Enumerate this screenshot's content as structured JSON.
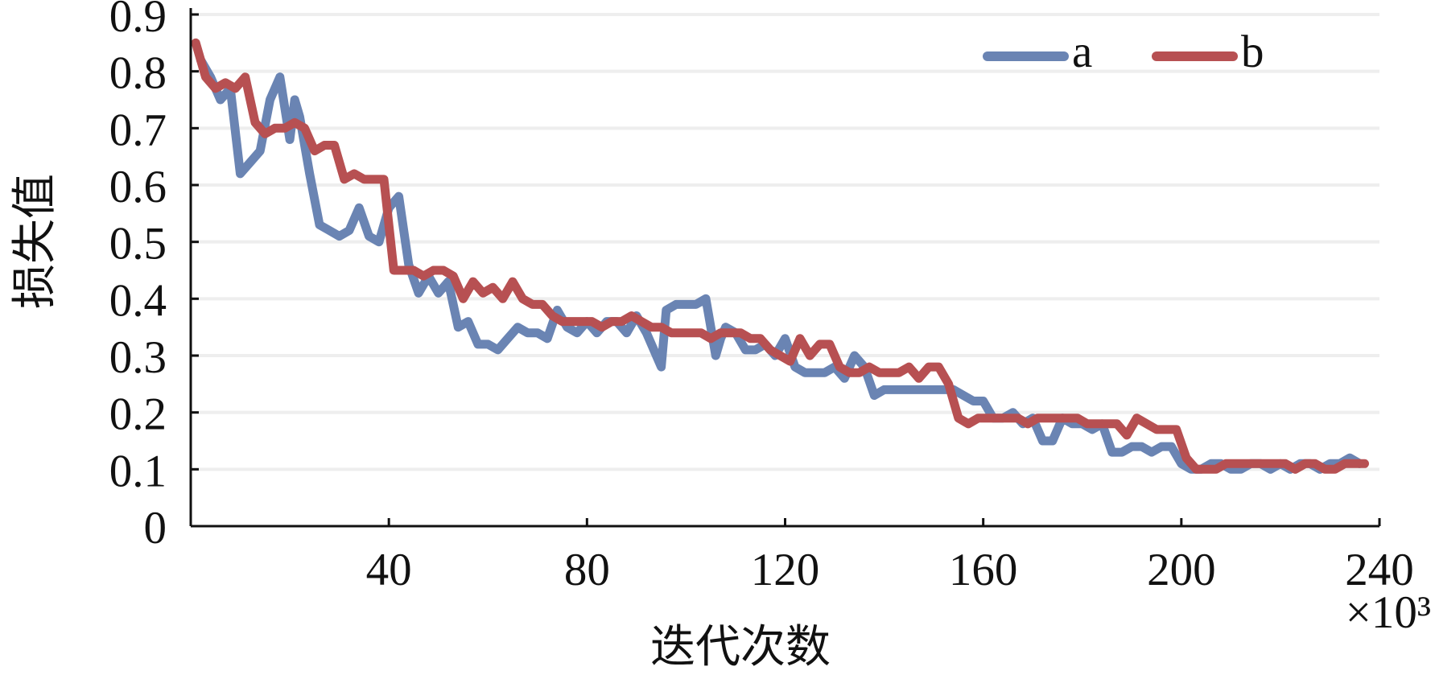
{
  "chart_data": {
    "type": "line",
    "xlabel": "迭代次数",
    "ylabel": "损失值",
    "x_unit": "×10³",
    "xlim": [
      0,
      240
    ],
    "ylim": [
      0,
      0.9
    ],
    "x_ticks": [
      40,
      80,
      120,
      160,
      200,
      240
    ],
    "y_ticks": [
      0,
      0.1,
      0.2,
      0.3,
      0.4,
      0.5,
      0.6,
      0.7,
      0.8,
      0.9
    ],
    "y_tick_labels": [
      "0",
      "0.1",
      "0.2",
      "0.3",
      "0.4",
      "0.5",
      "0.6",
      "0.7",
      "0.8",
      "0.9"
    ],
    "x_tick_labels": [
      "40",
      "80",
      "120",
      "160",
      "200",
      "240"
    ],
    "grid": "horizontal",
    "legend_position": "top-right",
    "series": [
      {
        "name": "a",
        "color": "#6a84b3",
        "x": [
          2,
          4,
          6,
          8,
          10,
          12,
          14,
          16,
          18,
          20,
          21,
          22,
          24,
          26,
          28,
          30,
          32,
          34,
          36,
          38,
          40,
          42,
          44,
          46,
          48,
          50,
          52,
          54,
          56,
          58,
          60,
          62,
          64,
          66,
          68,
          70,
          72,
          74,
          76,
          78,
          80,
          82,
          84,
          86,
          88,
          90,
          92,
          94,
          95,
          96,
          98,
          100,
          102,
          104,
          106,
          107,
          108,
          110,
          112,
          114,
          116,
          118,
          120,
          122,
          124,
          126,
          128,
          130,
          132,
          134,
          136,
          138,
          140,
          142,
          144,
          146,
          148,
          150,
          152,
          154,
          156,
          158,
          160,
          162,
          164,
          166,
          168,
          170,
          172,
          174,
          176,
          178,
          180,
          182,
          184,
          186,
          188,
          190,
          192,
          194,
          196,
          198,
          200,
          202,
          204,
          206,
          208,
          210,
          212,
          214,
          216,
          218,
          220,
          222,
          224,
          226,
          228,
          230,
          232,
          234,
          236
        ],
        "y": [
          0.82,
          0.79,
          0.75,
          0.77,
          0.62,
          0.64,
          0.66,
          0.75,
          0.79,
          0.68,
          0.75,
          0.72,
          0.62,
          0.53,
          0.52,
          0.51,
          0.52,
          0.56,
          0.51,
          0.5,
          0.56,
          0.58,
          0.46,
          0.41,
          0.44,
          0.41,
          0.43,
          0.35,
          0.36,
          0.32,
          0.32,
          0.31,
          0.33,
          0.35,
          0.34,
          0.34,
          0.33,
          0.38,
          0.35,
          0.34,
          0.36,
          0.34,
          0.36,
          0.36,
          0.34,
          0.37,
          0.34,
          0.3,
          0.28,
          0.38,
          0.39,
          0.39,
          0.39,
          0.4,
          0.3,
          0.33,
          0.35,
          0.34,
          0.31,
          0.31,
          0.32,
          0.3,
          0.33,
          0.28,
          0.27,
          0.27,
          0.27,
          0.28,
          0.26,
          0.3,
          0.28,
          0.23,
          0.24,
          0.24,
          0.24,
          0.24,
          0.24,
          0.24,
          0.24,
          0.24,
          0.23,
          0.22,
          0.22,
          0.19,
          0.19,
          0.2,
          0.18,
          0.19,
          0.15,
          0.15,
          0.19,
          0.18,
          0.18,
          0.17,
          0.18,
          0.13,
          0.13,
          0.14,
          0.14,
          0.13,
          0.14,
          0.14,
          0.11,
          0.1,
          0.1,
          0.11,
          0.11,
          0.1,
          0.1,
          0.11,
          0.11,
          0.1,
          0.11,
          0.1,
          0.11,
          0.11,
          0.1,
          0.11,
          0.11,
          0.12,
          0.11
        ]
      },
      {
        "name": "b",
        "color": "#b75052",
        "x": [
          1,
          3,
          5,
          7,
          9,
          11,
          13,
          15,
          17,
          19,
          21,
          23,
          25,
          27,
          29,
          31,
          33,
          35,
          37,
          39,
          41,
          43,
          45,
          47,
          49,
          51,
          53,
          55,
          57,
          59,
          61,
          63,
          65,
          67,
          69,
          71,
          73,
          75,
          77,
          79,
          81,
          83,
          85,
          87,
          89,
          91,
          93,
          95,
          97,
          99,
          101,
          103,
          105,
          107,
          109,
          111,
          113,
          115,
          117,
          119,
          121,
          123,
          125,
          127,
          129,
          131,
          133,
          135,
          137,
          139,
          141,
          143,
          145,
          147,
          149,
          151,
          153,
          155,
          157,
          159,
          161,
          163,
          165,
          167,
          169,
          171,
          173,
          175,
          177,
          179,
          181,
          183,
          185,
          187,
          189,
          191,
          193,
          195,
          197,
          199,
          201,
          203,
          205,
          207,
          209,
          211,
          213,
          215,
          217,
          219,
          221,
          223,
          225,
          227,
          229,
          231,
          233,
          235,
          237
        ],
        "y": [
          0.85,
          0.79,
          0.77,
          0.78,
          0.77,
          0.79,
          0.71,
          0.69,
          0.7,
          0.7,
          0.71,
          0.7,
          0.66,
          0.67,
          0.67,
          0.61,
          0.62,
          0.61,
          0.61,
          0.61,
          0.45,
          0.45,
          0.45,
          0.44,
          0.45,
          0.45,
          0.44,
          0.4,
          0.43,
          0.41,
          0.42,
          0.4,
          0.43,
          0.4,
          0.39,
          0.39,
          0.37,
          0.36,
          0.36,
          0.36,
          0.36,
          0.35,
          0.36,
          0.36,
          0.37,
          0.36,
          0.35,
          0.35,
          0.34,
          0.34,
          0.34,
          0.34,
          0.33,
          0.34,
          0.34,
          0.34,
          0.33,
          0.33,
          0.31,
          0.3,
          0.29,
          0.33,
          0.3,
          0.32,
          0.32,
          0.28,
          0.27,
          0.27,
          0.28,
          0.27,
          0.27,
          0.27,
          0.28,
          0.26,
          0.28,
          0.28,
          0.25,
          0.19,
          0.18,
          0.19,
          0.19,
          0.19,
          0.19,
          0.19,
          0.18,
          0.19,
          0.19,
          0.19,
          0.19,
          0.19,
          0.18,
          0.18,
          0.18,
          0.18,
          0.16,
          0.19,
          0.18,
          0.17,
          0.17,
          0.17,
          0.12,
          0.1,
          0.1,
          0.1,
          0.11,
          0.11,
          0.11,
          0.11,
          0.11,
          0.11,
          0.11,
          0.1,
          0.11,
          0.11,
          0.1,
          0.1,
          0.11,
          0.11,
          0.11
        ]
      }
    ]
  }
}
